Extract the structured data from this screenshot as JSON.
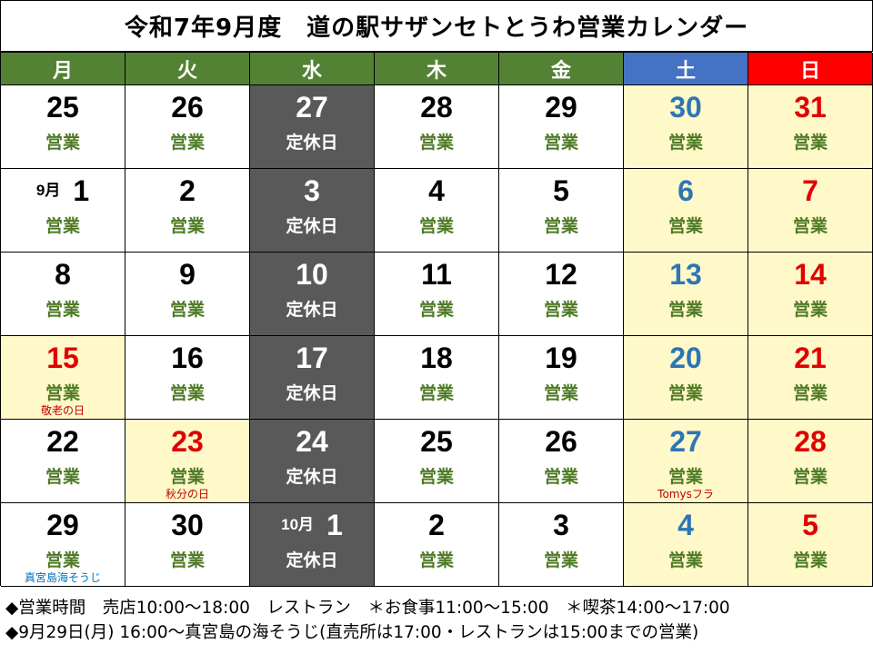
{
  "title": "令和7年9月度　道の駅サザンセトとうわ営業カレンダー",
  "colors": {
    "weekday_header": "#548235",
    "saturday_header": "#4472c4",
    "sunday_header": "#ff0000",
    "closed_bg": "#595959",
    "highlight_bg": "#fff9c9",
    "open_text": "#4e7a25",
    "saturday_text": "#2e75b6",
    "holiday_text": "#e00000",
    "normal_text": "#000000",
    "closed_text": "#ffffff"
  },
  "weekdays": [
    {
      "label": "月",
      "kind": "weekday"
    },
    {
      "label": "火",
      "kind": "weekday"
    },
    {
      "label": "水",
      "kind": "weekday"
    },
    {
      "label": "木",
      "kind": "weekday"
    },
    {
      "label": "金",
      "kind": "weekday"
    },
    {
      "label": "土",
      "kind": "saturday"
    },
    {
      "label": "日",
      "kind": "sunday"
    }
  ],
  "weeks": [
    [
      {
        "day": "25",
        "status": "営業",
        "type": "normal"
      },
      {
        "day": "26",
        "status": "営業",
        "type": "normal"
      },
      {
        "day": "27",
        "status": "定休日",
        "type": "closed"
      },
      {
        "day": "28",
        "status": "営業",
        "type": "normal"
      },
      {
        "day": "29",
        "status": "営業",
        "type": "normal"
      },
      {
        "day": "30",
        "status": "営業",
        "type": "saturday"
      },
      {
        "day": "31",
        "status": "営業",
        "type": "holiday"
      }
    ],
    [
      {
        "month": "9月",
        "day": "1",
        "status": "営業",
        "type": "normal"
      },
      {
        "day": "2",
        "status": "営業",
        "type": "normal"
      },
      {
        "day": "3",
        "status": "定休日",
        "type": "closed"
      },
      {
        "day": "4",
        "status": "営業",
        "type": "normal"
      },
      {
        "day": "5",
        "status": "営業",
        "type": "normal"
      },
      {
        "day": "6",
        "status": "営業",
        "type": "saturday"
      },
      {
        "day": "7",
        "status": "営業",
        "type": "holiday"
      }
    ],
    [
      {
        "day": "8",
        "status": "営業",
        "type": "normal"
      },
      {
        "day": "9",
        "status": "営業",
        "type": "normal"
      },
      {
        "day": "10",
        "status": "定休日",
        "type": "closed"
      },
      {
        "day": "11",
        "status": "営業",
        "type": "normal"
      },
      {
        "day": "12",
        "status": "営業",
        "type": "normal"
      },
      {
        "day": "13",
        "status": "営業",
        "type": "saturday"
      },
      {
        "day": "14",
        "status": "営業",
        "type": "holiday"
      }
    ],
    [
      {
        "day": "15",
        "status": "営業",
        "type": "holiday",
        "note": "敬老の日",
        "note_color": "#c00000"
      },
      {
        "day": "16",
        "status": "営業",
        "type": "normal"
      },
      {
        "day": "17",
        "status": "定休日",
        "type": "closed"
      },
      {
        "day": "18",
        "status": "営業",
        "type": "normal"
      },
      {
        "day": "19",
        "status": "営業",
        "type": "normal"
      },
      {
        "day": "20",
        "status": "営業",
        "type": "saturday"
      },
      {
        "day": "21",
        "status": "営業",
        "type": "holiday"
      }
    ],
    [
      {
        "day": "22",
        "status": "営業",
        "type": "normal"
      },
      {
        "day": "23",
        "status": "営業",
        "type": "holiday",
        "note": "秋分の日",
        "note_color": "#c00000"
      },
      {
        "day": "24",
        "status": "定休日",
        "type": "closed"
      },
      {
        "day": "25",
        "status": "営業",
        "type": "normal"
      },
      {
        "day": "26",
        "status": "営業",
        "type": "normal"
      },
      {
        "day": "27",
        "status": "営業",
        "type": "saturday",
        "note": "Tomysフラ",
        "note_color": "#c00000"
      },
      {
        "day": "28",
        "status": "営業",
        "type": "holiday"
      }
    ],
    [
      {
        "day": "29",
        "status": "営業",
        "type": "normal",
        "note": "真宮島海そうじ",
        "note_color": "#0070c0"
      },
      {
        "day": "30",
        "status": "営業",
        "type": "normal"
      },
      {
        "month": "10月",
        "day": "1",
        "status": "定休日",
        "type": "closed"
      },
      {
        "day": "2",
        "status": "営業",
        "type": "normal"
      },
      {
        "day": "3",
        "status": "営業",
        "type": "normal"
      },
      {
        "day": "4",
        "status": "営業",
        "type": "saturday"
      },
      {
        "day": "5",
        "status": "営業",
        "type": "holiday"
      }
    ]
  ],
  "footer": {
    "line1": "◆営業時間　売店10:00～18:00　レストラン　＊お食事11:00～15:00　＊喫茶14:00～17:00",
    "line2": "◆9月29日(月) 16:00～真宮島の海そうじ(直売所は17:00・レストランは15:00までの営業)"
  }
}
